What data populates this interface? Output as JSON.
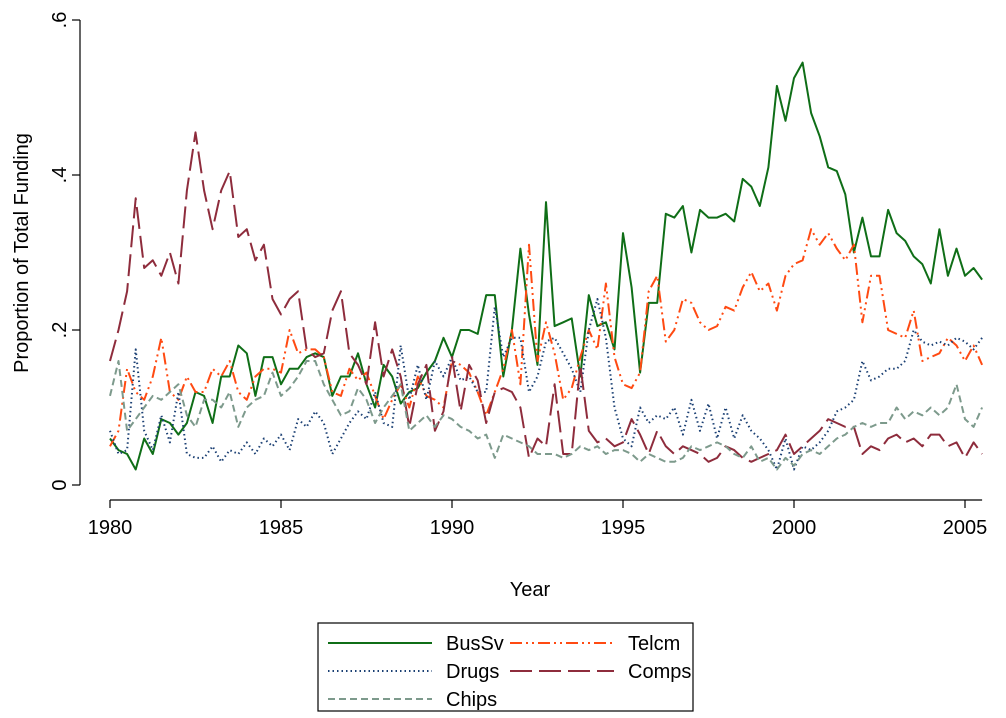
{
  "chart_data": {
    "type": "line",
    "x_label": "Year",
    "y_label": "Proportion of Total Funding",
    "xlim": [
      1980,
      2005.5
    ],
    "xticks": [
      1980,
      1985,
      1990,
      1995,
      2000,
      2005
    ],
    "ylim": [
      0,
      0.6
    ],
    "yticks": [
      {
        "value": 0,
        "label": "0"
      },
      {
        "value": 0.2,
        "label": ".2"
      },
      {
        "value": 0.4,
        "label": ".4"
      },
      {
        "value": 0.6,
        "label": ".6"
      }
    ],
    "x": [
      1980,
      1980.25,
      1980.5,
      1980.75,
      1981,
      1981.25,
      1981.5,
      1981.75,
      1982,
      1982.25,
      1982.5,
      1982.75,
      1983,
      1983.25,
      1983.5,
      1983.75,
      1984,
      1984.25,
      1984.5,
      1984.75,
      1985,
      1985.25,
      1985.5,
      1985.75,
      1986,
      1986.25,
      1986.5,
      1986.75,
      1987,
      1987.25,
      1987.5,
      1987.75,
      1988,
      1988.25,
      1988.5,
      1988.75,
      1989,
      1989.25,
      1989.5,
      1989.75,
      1990,
      1990.25,
      1990.5,
      1990.75,
      1991,
      1991.25,
      1991.5,
      1991.75,
      1992,
      1992.25,
      1992.5,
      1992.75,
      1993,
      1993.25,
      1993.5,
      1993.75,
      1994,
      1994.25,
      1994.5,
      1994.75,
      1995,
      1995.25,
      1995.5,
      1995.75,
      1996,
      1996.25,
      1996.5,
      1996.75,
      1997,
      1997.25,
      1997.5,
      1997.75,
      1998,
      1998.25,
      1998.5,
      1998.75,
      1999,
      1999.25,
      1999.5,
      1999.75,
      2000,
      2000.25,
      2000.5,
      2000.75,
      2001,
      2001.25,
      2001.5,
      2001.75,
      2002,
      2002.25,
      2002.5,
      2002.75,
      2003,
      2003.25,
      2003.5,
      2003.75,
      2004,
      2004.25,
      2004.5,
      2004.75,
      2005,
      2005.25,
      2005.5
    ],
    "series": [
      {
        "name": "BusSv",
        "color": "#0f6e17",
        "dash": "solid",
        "values": [
          0.06,
          0.045,
          0.04,
          0.02,
          0.06,
          0.04,
          0.085,
          0.08,
          0.065,
          0.08,
          0.12,
          0.115,
          0.08,
          0.14,
          0.14,
          0.18,
          0.17,
          0.115,
          0.165,
          0.165,
          0.13,
          0.15,
          0.15,
          0.165,
          0.17,
          0.165,
          0.115,
          0.14,
          0.14,
          0.17,
          0.13,
          0.1,
          0.155,
          0.14,
          0.105,
          0.12,
          0.125,
          0.145,
          0.16,
          0.19,
          0.165,
          0.2,
          0.2,
          0.195,
          0.245,
          0.245,
          0.14,
          0.2,
          0.305,
          0.22,
          0.155,
          0.365,
          0.205,
          0.21,
          0.215,
          0.14,
          0.245,
          0.205,
          0.21,
          0.175,
          0.325,
          0.255,
          0.145,
          0.235,
          0.235,
          0.35,
          0.345,
          0.36,
          0.3,
          0.355,
          0.345,
          0.345,
          0.35,
          0.34,
          0.395,
          0.385,
          0.36,
          0.41,
          0.515,
          0.47,
          0.525,
          0.545,
          0.48,
          0.45,
          0.41,
          0.405,
          0.375,
          0.3,
          0.345,
          0.295,
          0.295,
          0.355,
          0.325,
          0.315,
          0.295,
          0.285,
          0.26,
          0.33,
          0.27,
          0.305,
          0.27,
          0.28,
          0.265
        ]
      },
      {
        "name": "Telcm",
        "color": "#ff4a12",
        "dash": "dash-dot-dot",
        "values": [
          0.05,
          0.07,
          0.15,
          0.12,
          0.11,
          0.14,
          0.19,
          0.12,
          0.11,
          0.14,
          0.12,
          0.12,
          0.15,
          0.14,
          0.16,
          0.12,
          0.11,
          0.14,
          0.15,
          0.15,
          0.145,
          0.2,
          0.17,
          0.175,
          0.175,
          0.165,
          0.12,
          0.115,
          0.15,
          0.135,
          0.145,
          0.115,
          0.085,
          0.11,
          0.13,
          0.1,
          0.14,
          0.115,
          0.11,
          0.1,
          0.16,
          0.155,
          0.145,
          0.12,
          0.09,
          0.12,
          0.15,
          0.2,
          0.13,
          0.31,
          0.16,
          0.21,
          0.17,
          0.11,
          0.125,
          0.165,
          0.2,
          0.175,
          0.26,
          0.165,
          0.13,
          0.125,
          0.145,
          0.25,
          0.27,
          0.185,
          0.2,
          0.24,
          0.235,
          0.21,
          0.2,
          0.205,
          0.23,
          0.225,
          0.255,
          0.275,
          0.25,
          0.26,
          0.225,
          0.27,
          0.285,
          0.29,
          0.33,
          0.31,
          0.325,
          0.305,
          0.29,
          0.31,
          0.21,
          0.27,
          0.27,
          0.2,
          0.195,
          0.19,
          0.225,
          0.16,
          0.165,
          0.17,
          0.19,
          0.18,
          0.16,
          0.18,
          0.155
        ]
      },
      {
        "name": "Drugs",
        "color": "#1a3f73",
        "dash": "dot",
        "values": [
          0.07,
          0.04,
          0.045,
          0.175,
          0.07,
          0.045,
          0.09,
          0.055,
          0.12,
          0.04,
          0.035,
          0.035,
          0.05,
          0.03,
          0.045,
          0.04,
          0.055,
          0.04,
          0.06,
          0.05,
          0.065,
          0.045,
          0.085,
          0.075,
          0.095,
          0.08,
          0.04,
          0.06,
          0.08,
          0.095,
          0.085,
          0.12,
          0.08,
          0.075,
          0.18,
          0.11,
          0.155,
          0.11,
          0.16,
          0.14,
          0.165,
          0.135,
          0.14,
          0.12,
          0.12,
          0.23,
          0.165,
          0.19,
          0.19,
          0.12,
          0.14,
          0.185,
          0.19,
          0.17,
          0.15,
          0.12,
          0.2,
          0.24,
          0.19,
          0.1,
          0.06,
          0.05,
          0.1,
          0.08,
          0.09,
          0.085,
          0.1,
          0.065,
          0.11,
          0.07,
          0.105,
          0.06,
          0.1,
          0.06,
          0.09,
          0.07,
          0.06,
          0.045,
          0.02,
          0.06,
          0.02,
          0.05,
          0.045,
          0.055,
          0.07,
          0.095,
          0.1,
          0.11,
          0.16,
          0.135,
          0.14,
          0.15,
          0.15,
          0.16,
          0.2,
          0.185,
          0.18,
          0.185,
          0.18,
          0.19,
          0.185,
          0.175,
          0.19
        ]
      },
      {
        "name": "Comps",
        "color": "#8e2c3c",
        "dash": "long-dash",
        "values": [
          0.16,
          0.2,
          0.25,
          0.37,
          0.28,
          0.29,
          0.27,
          0.3,
          0.26,
          0.38,
          0.455,
          0.38,
          0.33,
          0.38,
          0.405,
          0.32,
          0.33,
          0.29,
          0.31,
          0.24,
          0.22,
          0.24,
          0.25,
          0.175,
          0.165,
          0.17,
          0.225,
          0.25,
          0.17,
          0.155,
          0.13,
          0.21,
          0.14,
          0.175,
          0.14,
          0.075,
          0.13,
          0.155,
          0.07,
          0.095,
          0.165,
          0.095,
          0.155,
          0.135,
          0.08,
          0.12,
          0.125,
          0.12,
          0.1,
          0.035,
          0.06,
          0.05,
          0.13,
          0.04,
          0.04,
          0.155,
          0.07,
          0.055,
          0.06,
          0.05,
          0.055,
          0.085,
          0.065,
          0.04,
          0.07,
          0.05,
          0.04,
          0.05,
          0.045,
          0.04,
          0.03,
          0.035,
          0.05,
          0.045,
          0.035,
          0.03,
          0.035,
          0.04,
          0.045,
          0.065,
          0.04,
          0.05,
          0.06,
          0.07,
          0.085,
          0.08,
          0.075,
          0.075,
          0.04,
          0.05,
          0.045,
          0.06,
          0.065,
          0.055,
          0.06,
          0.05,
          0.065,
          0.065,
          0.05,
          0.055,
          0.035,
          0.055,
          0.04
        ]
      },
      {
        "name": "Chips",
        "color": "#7d9a8c",
        "dash": "dash",
        "values": [
          0.115,
          0.16,
          0.07,
          0.085,
          0.1,
          0.115,
          0.11,
          0.12,
          0.13,
          0.09,
          0.075,
          0.11,
          0.11,
          0.1,
          0.12,
          0.075,
          0.1,
          0.11,
          0.115,
          0.145,
          0.115,
          0.125,
          0.14,
          0.16,
          0.16,
          0.13,
          0.11,
          0.09,
          0.095,
          0.125,
          0.11,
          0.08,
          0.1,
          0.115,
          0.13,
          0.07,
          0.08,
          0.09,
          0.075,
          0.09,
          0.085,
          0.075,
          0.07,
          0.06,
          0.065,
          0.035,
          0.065,
          0.06,
          0.055,
          0.05,
          0.04,
          0.04,
          0.04,
          0.035,
          0.04,
          0.05,
          0.045,
          0.05,
          0.04,
          0.045,
          0.045,
          0.04,
          0.03,
          0.04,
          0.035,
          0.03,
          0.03,
          0.035,
          0.05,
          0.045,
          0.05,
          0.055,
          0.05,
          0.04,
          0.035,
          0.05,
          0.03,
          0.035,
          0.02,
          0.035,
          0.025,
          0.04,
          0.045,
          0.04,
          0.05,
          0.06,
          0.065,
          0.075,
          0.08,
          0.075,
          0.08,
          0.08,
          0.1,
          0.085,
          0.095,
          0.09,
          0.1,
          0.09,
          0.1,
          0.13,
          0.085,
          0.075,
          0.1
        ]
      }
    ]
  }
}
